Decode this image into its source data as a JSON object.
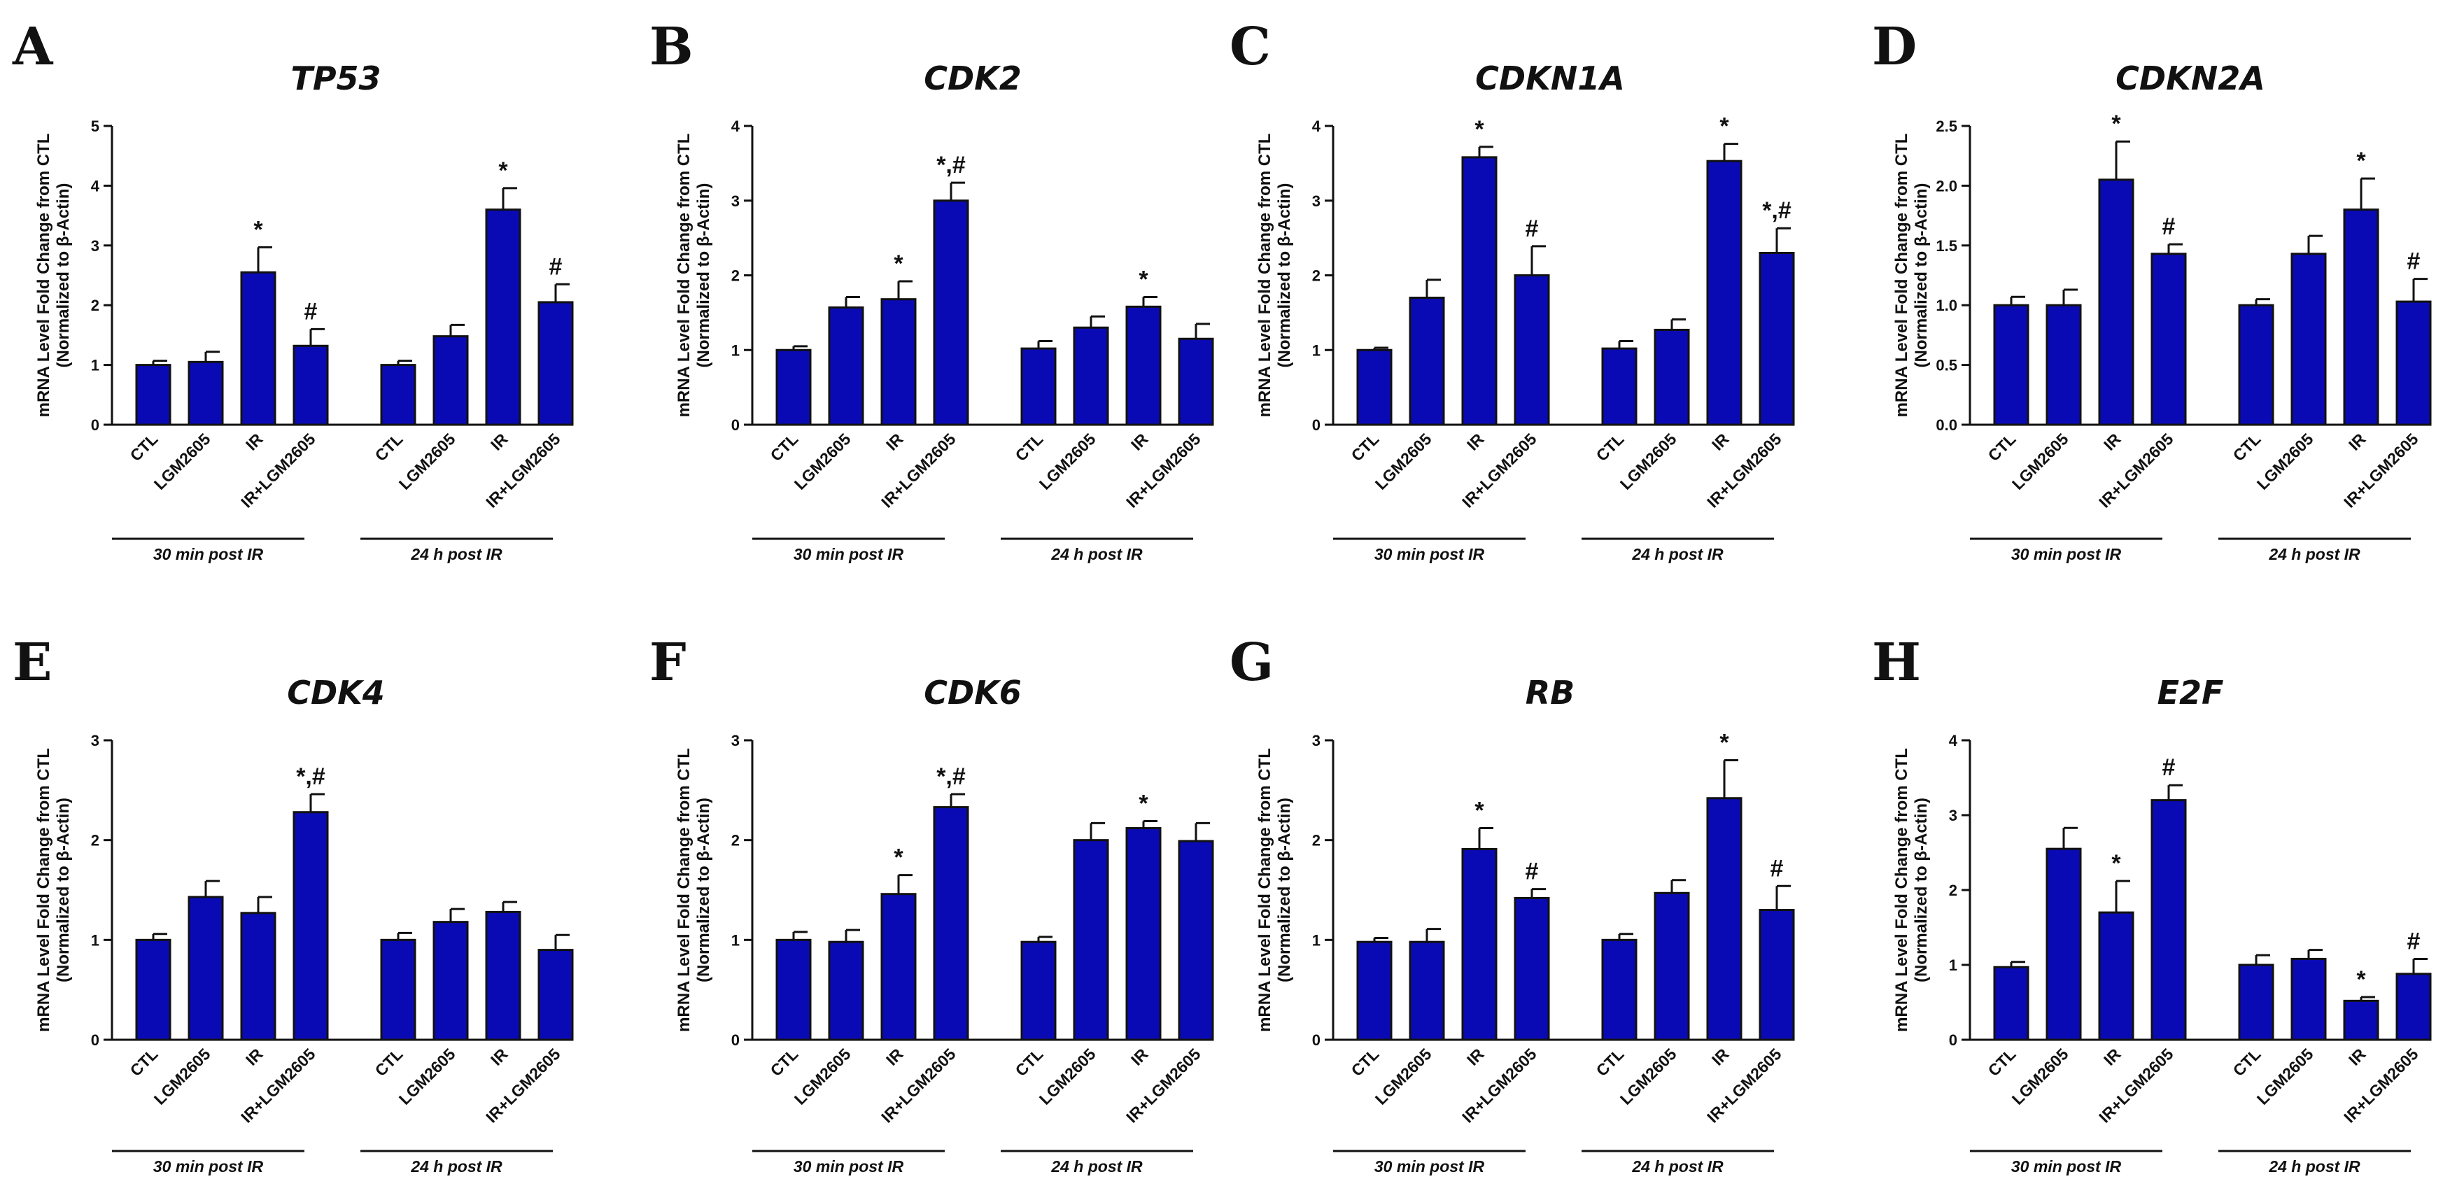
{
  "colors": {
    "bar_fill": "#0a0ab4",
    "outline": "#111111"
  },
  "chart_data": [
    {
      "panel": "A",
      "title": "TP53",
      "type": "bar",
      "ylabel": [
        "mRNA Level Fold Change from CTL",
        "(Normalized to β-Actin)"
      ],
      "ylim": [
        0,
        5
      ],
      "yticks": [
        "0",
        "1",
        "2",
        "3",
        "4",
        "5"
      ],
      "categories": [
        "CTL",
        "LGM2605",
        "IR",
        "IR+LGM2605",
        "CTL",
        "LGM2605",
        "IR",
        "IR+LGM2605"
      ],
      "groups": [
        "30 min post IR",
        "24 h post IR"
      ],
      "values": [
        1.0,
        1.05,
        2.55,
        1.32,
        1.0,
        1.48,
        3.6,
        2.05
      ],
      "errors": [
        0.07,
        0.17,
        0.42,
        0.28,
        0.07,
        0.19,
        0.36,
        0.3
      ],
      "annotations": [
        "",
        "",
        "*",
        "#",
        "",
        "",
        "*",
        "#"
      ]
    },
    {
      "panel": "B",
      "title": "CDK2",
      "type": "bar",
      "ylabel": [
        "mRNA Level Fold Change from CTL",
        "(Normalized to β-Actin)"
      ],
      "ylim": [
        0,
        4
      ],
      "yticks": [
        "0",
        "1",
        "2",
        "3",
        "4"
      ],
      "categories": [
        "CTL",
        "LGM2605",
        "IR",
        "IR+LGM2605",
        "CTL",
        "LGM2605",
        "IR",
        "IR+LGM2605"
      ],
      "groups": [
        "30 min post IR",
        "24 h post IR"
      ],
      "values": [
        1.0,
        1.57,
        1.68,
        3.0,
        1.02,
        1.3,
        1.58,
        1.15
      ],
      "errors": [
        0.05,
        0.14,
        0.24,
        0.24,
        0.1,
        0.15,
        0.13,
        0.2
      ],
      "annotations": [
        "",
        "",
        "*",
        "*,#",
        "",
        "",
        "*",
        ""
      ]
    },
    {
      "panel": "C",
      "title": "CDKN1A",
      "type": "bar",
      "ylabel": [
        "mRNA Level Fold Change from CTL",
        "(Normalized to β-Actin)"
      ],
      "ylim": [
        0,
        4
      ],
      "yticks": [
        "0",
        "1",
        "2",
        "3",
        "4"
      ],
      "categories": [
        "CTL",
        "LGM2605",
        "IR",
        "IR+LGM2605",
        "CTL",
        "LGM2605",
        "IR",
        "IR+LGM2605"
      ],
      "groups": [
        "30 min post IR",
        "24 h post IR"
      ],
      "values": [
        1.0,
        1.7,
        3.58,
        2.0,
        1.02,
        1.27,
        3.53,
        2.3
      ],
      "errors": [
        0.03,
        0.24,
        0.14,
        0.39,
        0.1,
        0.14,
        0.23,
        0.33
      ],
      "annotations": [
        "",
        "",
        "*",
        "#",
        "",
        "",
        "*",
        "*,#"
      ]
    },
    {
      "panel": "D",
      "title": "CDKN2A",
      "type": "bar",
      "ylabel": [
        "mRNA Level Fold Change from CTL",
        "(Normalized to β-Actin)"
      ],
      "ylim": [
        0,
        2.5
      ],
      "yticks": [
        "0.0",
        "0.5",
        "1.0",
        "1.5",
        "2.0",
        "2.5"
      ],
      "categories": [
        "CTL",
        "LGM2605",
        "IR",
        "IR+LGM2605",
        "CTL",
        "LGM2605",
        "IR",
        "IR+LGM2605"
      ],
      "groups": [
        "30 min post IR",
        "24 h post IR"
      ],
      "values": [
        1.0,
        1.0,
        2.05,
        1.43,
        1.0,
        1.43,
        1.8,
        1.03
      ],
      "errors": [
        0.07,
        0.13,
        0.32,
        0.08,
        0.05,
        0.15,
        0.26,
        0.19
      ],
      "annotations": [
        "",
        "",
        "*",
        "#",
        "",
        "",
        "*",
        "#"
      ]
    },
    {
      "panel": "E",
      "title": "CDK4",
      "type": "bar",
      "ylabel": [
        "mRNA Level Fold Change from CTL",
        "(Normalized to β-Actin)"
      ],
      "ylim": [
        0,
        3
      ],
      "yticks": [
        "0",
        "1",
        "2",
        "3"
      ],
      "categories": [
        "CTL",
        "LGM2605",
        "IR",
        "IR+LGM2605",
        "CTL",
        "LGM2605",
        "IR",
        "IR+LGM2605"
      ],
      "groups": [
        "30 min post IR",
        "24 h post IR"
      ],
      "values": [
        1.0,
        1.43,
        1.27,
        2.28,
        1.0,
        1.18,
        1.28,
        0.9
      ],
      "errors": [
        0.06,
        0.16,
        0.16,
        0.18,
        0.07,
        0.13,
        0.1,
        0.15
      ],
      "annotations": [
        "",
        "",
        "",
        "*,#",
        "",
        "",
        "",
        ""
      ]
    },
    {
      "panel": "F",
      "title": "CDK6",
      "type": "bar",
      "ylabel": [
        "mRNA Level Fold Change from CTL",
        "(Normalized to β-Actin)"
      ],
      "ylim": [
        0,
        3
      ],
      "yticks": [
        "0",
        "1",
        "2",
        "3"
      ],
      "categories": [
        "CTL",
        "LGM2605",
        "IR",
        "IR+LGM2605",
        "CTL",
        "LGM2605",
        "IR",
        "IR+LGM2605"
      ],
      "groups": [
        "30 min post IR",
        "24 h post IR"
      ],
      "values": [
        1.0,
        0.98,
        1.46,
        2.33,
        0.98,
        2.0,
        2.12,
        1.99
      ],
      "errors": [
        0.08,
        0.12,
        0.19,
        0.13,
        0.05,
        0.17,
        0.07,
        0.18
      ],
      "annotations": [
        "",
        "",
        "*",
        "*,#",
        "",
        "",
        "*",
        ""
      ]
    },
    {
      "panel": "G",
      "title": "RB",
      "type": "bar",
      "ylabel": [
        "mRNA Level Fold Change from CTL",
        "(Normalized to β-Actin)"
      ],
      "ylim": [
        0,
        3
      ],
      "yticks": [
        "0",
        "1",
        "2",
        "3"
      ],
      "categories": [
        "CTL",
        "LGM2605",
        "IR",
        "IR+LGM2605",
        "CTL",
        "LGM2605",
        "IR",
        "IR+LGM2605"
      ],
      "groups": [
        "30 min post IR",
        "24 h post IR"
      ],
      "values": [
        0.98,
        0.98,
        1.91,
        1.42,
        1.0,
        1.47,
        2.42,
        1.3
      ],
      "errors": [
        0.04,
        0.13,
        0.21,
        0.09,
        0.06,
        0.13,
        0.38,
        0.24
      ],
      "annotations": [
        "",
        "",
        "*",
        "#",
        "",
        "",
        "*",
        "#"
      ]
    },
    {
      "panel": "H",
      "title": "E2F",
      "type": "bar",
      "ylabel": [
        "mRNA Level Fold Change from CTL",
        "(Normalized to β-Actin)"
      ],
      "ylim": [
        0,
        4
      ],
      "yticks": [
        "0",
        "1",
        "2",
        "3",
        "4"
      ],
      "categories": [
        "CTL",
        "LGM2605",
        "IR",
        "IR+LGM2605",
        "CTL",
        "LGM2605",
        "IR",
        "IR+LGM2605"
      ],
      "groups": [
        "30 min post IR",
        "24 h post IR"
      ],
      "values": [
        0.97,
        2.55,
        1.7,
        3.2,
        1.0,
        1.08,
        0.52,
        0.88
      ],
      "errors": [
        0.07,
        0.28,
        0.42,
        0.2,
        0.13,
        0.12,
        0.05,
        0.2
      ],
      "annotations": [
        "",
        "",
        "*",
        "#",
        "",
        "",
        "*",
        "#"
      ]
    }
  ]
}
